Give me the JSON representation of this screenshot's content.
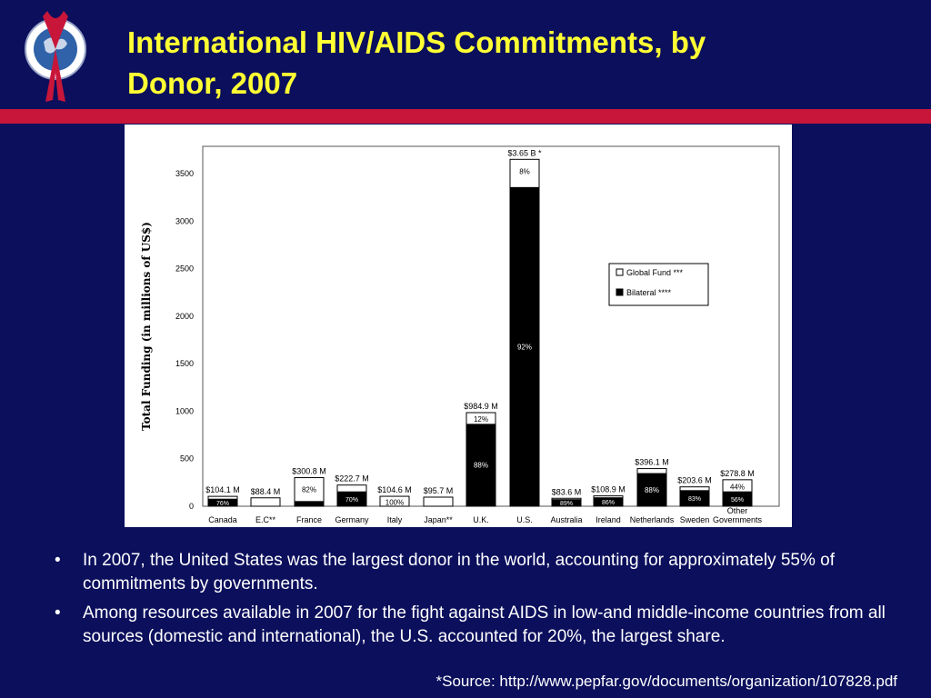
{
  "header": {
    "title_line1": "International HIV/AIDS Commitments, by",
    "title_line2": "Donor, 2007",
    "logo_icon": "globe-seal-with-red-ribbon-icon",
    "colors": {
      "background": "#0b0f5c",
      "title": "#ffff33",
      "accent_bar": "#c8163a"
    }
  },
  "chart_data": {
    "type": "bar",
    "stacked": true,
    "ylabel": "Total Funding (in millions of US$)",
    "ylim": [
      0,
      3650
    ],
    "yticks": [
      0,
      500,
      1000,
      1500,
      2000,
      2500,
      3000,
      3500
    ],
    "legend_position": "right-middle",
    "grid": false,
    "legend": [
      {
        "key": "global_fund",
        "label": "Global Fund ***",
        "color": "#ffffff"
      },
      {
        "key": "bilateral",
        "label": "Bilateral ****",
        "color": "#000000"
      }
    ],
    "categories": [
      {
        "label": "Canada",
        "note": "",
        "total": 104.1,
        "total_label": "$104.1 M",
        "bilateral_pct": 76,
        "bilateral_label": "76%",
        "gf_label": ""
      },
      {
        "label": "E.C",
        "note": "**",
        "total": 88.4,
        "total_label": "$88.4 M",
        "bilateral_pct": 0,
        "bilateral_label": "",
        "gf_label": ""
      },
      {
        "label": "France",
        "note": "",
        "total": 300.8,
        "total_label": "$300.8 M",
        "bilateral_pct": 18,
        "bilateral_label": "",
        "gf_label": "82%"
      },
      {
        "label": "Germany",
        "note": "",
        "total": 222.7,
        "total_label": "$222.7 M",
        "bilateral_pct": 70,
        "bilateral_label": "70%",
        "gf_label": ""
      },
      {
        "label": "Italy",
        "note": "",
        "total": 104.6,
        "total_label": "$104.6 M",
        "bilateral_pct": 0,
        "bilateral_label": "",
        "gf_label": "100%"
      },
      {
        "label": "Japan",
        "note": "**",
        "total": 95.7,
        "total_label": "$95.7 M",
        "bilateral_pct": 0,
        "bilateral_label": "",
        "gf_label": ""
      },
      {
        "label": "U.K.",
        "note": "",
        "total": 984.9,
        "total_label": "$984.9 M",
        "bilateral_pct": 88,
        "bilateral_label": "88%",
        "gf_label": "12%"
      },
      {
        "label": "U.S.",
        "note": "",
        "total": 3650,
        "total_label": "$3.65 B",
        "total_note": "*",
        "bilateral_pct": 92,
        "bilateral_label": "92%",
        "gf_label": "8%"
      },
      {
        "label": "Australia",
        "note": "",
        "total": 83.6,
        "total_label": "$83.6 M",
        "bilateral_pct": 89,
        "bilateral_label": "89%",
        "gf_label": ""
      },
      {
        "label": "Ireland",
        "note": "",
        "total": 108.9,
        "total_label": "$108.9 M",
        "bilateral_pct": 86,
        "bilateral_label": "86%",
        "gf_label": ""
      },
      {
        "label": "Netherlands",
        "note": "",
        "total": 396.1,
        "total_label": "$396.1 M",
        "bilateral_pct": 88,
        "bilateral_label": "88%",
        "gf_label": ""
      },
      {
        "label": "Sweden",
        "note": "",
        "total": 203.6,
        "total_label": "$203.6 M",
        "bilateral_pct": 83,
        "bilateral_label": "83%",
        "gf_label": ""
      },
      {
        "label": "Other Governments",
        "note": "",
        "total": 278.8,
        "total_label": "$278.8 M",
        "bilateral_pct": 56,
        "bilateral_label": "56%",
        "gf_label": "44%"
      }
    ]
  },
  "bullets": [
    "In 2007, the United States was the largest donor in the world, accounting for approximately 55% of commitments by governments.",
    "Among resources available in 2007 for the fight against AIDS in low-and middle-income countries from all sources (domestic and international), the U.S. accounted for 20%, the largest share."
  ],
  "source": "*Source: http://www.pepfar.gov/documents/organization/107828.pdf"
}
